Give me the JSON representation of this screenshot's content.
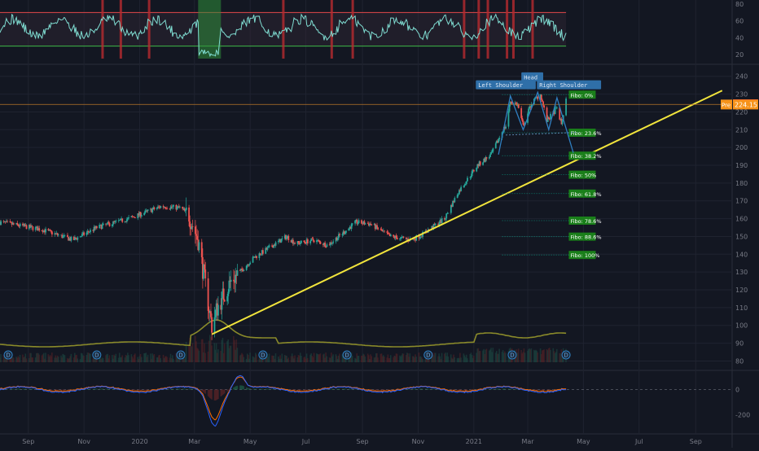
{
  "colors": {
    "background": "#131722",
    "grid": "#1f2330",
    "axis_text": "#787b86",
    "trendline": "#f1e43c",
    "fibo": "#089981",
    "fibo_label_bg": "#1a7f1a",
    "pattern": "#2f7fc1",
    "candle_up": "#26a69a",
    "candle_down": "#ef5350",
    "rsi_line": "#7fdcd1",
    "rsi_band_upper": "#e3484a",
    "rsi_band_lower": "#3fb848",
    "volume_ma": "#8a8a2a",
    "price_label": "#f23645",
    "pre_label": "#f7931a",
    "macd_line": "#2962ff",
    "signal_line": "#ff6d00"
  },
  "chart_data": [
    {
      "type": "line",
      "panel": "rsi",
      "y_ticks": [
        "80",
        "60",
        "40",
        "20"
      ],
      "ylim": [
        15,
        85
      ],
      "bands": [
        30,
        70
      ]
    },
    {
      "type": "candlestick",
      "panel": "price",
      "x_ticks": [
        "Sep",
        "Nov",
        "2020",
        "Mar",
        "May",
        "Jul",
        "Sep",
        "Nov",
        "2021",
        "Mar",
        "May",
        "Jul",
        "Sep"
      ],
      "y_ticks": [
        "240",
        "230",
        "220",
        "210",
        "200",
        "190",
        "180",
        "170",
        "160",
        "150",
        "140",
        "130",
        "120",
        "110",
        "100",
        "90",
        "80"
      ],
      "ylim": [
        77,
        244
      ],
      "last_price": "224.31",
      "pre_label": "Pre",
      "pre_price": "224.15",
      "fibo_levels": [
        {
          "label": "Fibo:   0%",
          "price": 229.7
        },
        {
          "label": "Fibo: 23.6%",
          "price": 208.3
        },
        {
          "label": "Fibo: 38.2%",
          "price": 195.4
        },
        {
          "label": "Fibo:   50%",
          "price": 184.7
        },
        {
          "label": "Fibo: 61.8%",
          "price": 174.1
        },
        {
          "label": "Fibo: 78.6%",
          "price": 158.9
        },
        {
          "label": "Fibo: 88.6%",
          "price": 149.9
        },
        {
          "label": "Fibo: 100%",
          "price": 139.6
        }
      ],
      "pattern_labels": [
        "Left Shoulder",
        "Head",
        "Right Shoulder"
      ],
      "dividend_marker": "D",
      "dividend_markers_count": 7,
      "trendline": {
        "from_date": "2020-03-20",
        "from_price": 95,
        "to_date": "2021-09-30",
        "to_price": 232
      },
      "volume_ma": "overlay"
    },
    {
      "type": "line",
      "panel": "macd",
      "y_ticks": [
        "0",
        "-200"
      ],
      "ylim": [
        -320,
        120
      ]
    }
  ]
}
